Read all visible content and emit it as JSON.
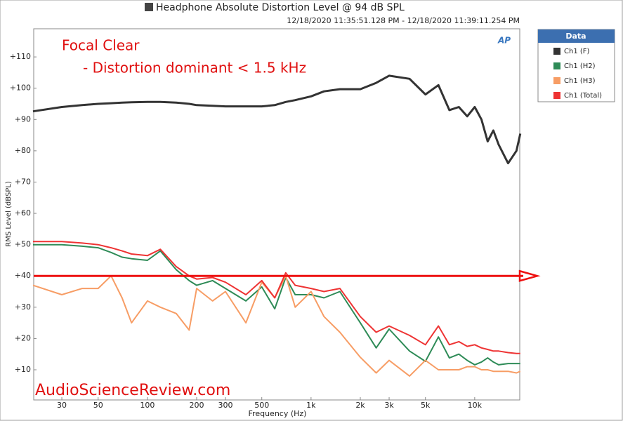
{
  "chart_data": {
    "type": "line",
    "title": "Headphone Absolute Distortion Level @ 94 dB SPL",
    "subtitle": "12/18/2020 11:35:51.128 PM - 12/18/2020 11:39:11.254 PM",
    "xlabel": "Frequency (Hz)",
    "ylabel": "RMS Level (dBSPL)",
    "annotations": [
      "Focal Clear",
      "- Distortion dominant < 1.5 kHz",
      "AudioScienceReview.com"
    ],
    "legend_title": "Data",
    "legend": "right",
    "xscale": "log",
    "grid": false,
    "hline": 40,
    "hline_color": "#ee1111",
    "xlim": [
      20,
      20000
    ],
    "ylim": [
      0,
      119
    ],
    "xticks": [
      30,
      50,
      100,
      200,
      300,
      500,
      {
        "value": 1000,
        "label": "1k"
      },
      {
        "value": 2000,
        "label": "2k"
      },
      {
        "value": 3000,
        "label": "3k"
      },
      {
        "value": 5000,
        "label": "5k"
      },
      {
        "value": 10000,
        "label": "10k"
      }
    ],
    "yticks": [
      {
        "value": 10,
        "label": "+10"
      },
      {
        "value": 20,
        "label": "+20"
      },
      {
        "value": 30,
        "label": "+30"
      },
      {
        "value": 40,
        "label": "+40"
      },
      {
        "value": 50,
        "label": "+50"
      },
      {
        "value": 60,
        "label": "+60"
      },
      {
        "value": 70,
        "label": "+70"
      },
      {
        "value": 80,
        "label": "+80"
      },
      {
        "value": 90,
        "label": "+90"
      },
      {
        "value": 100,
        "label": "+100"
      },
      {
        "value": 110,
        "label": "+110"
      }
    ],
    "x": [
      20,
      30,
      40,
      50,
      60,
      70,
      80,
      100,
      120,
      150,
      180,
      200,
      250,
      300,
      400,
      500,
      600,
      700,
      800,
      1000,
      1200,
      1500,
      2000,
      2500,
      3000,
      4000,
      5000,
      6000,
      7000,
      8000,
      9000,
      10000,
      11000,
      12000,
      13000,
      14000,
      16000,
      18000,
      19000
    ],
    "series": [
      {
        "name": "Ch1 (F)",
        "color": "#333333",
        "width": 3,
        "values": [
          92.6,
          94,
          94.6,
          95,
          95.2,
          95.4,
          95.5,
          95.6,
          95.6,
          95.4,
          95,
          94.6,
          94.4,
          94.2,
          94.2,
          94.2,
          94.6,
          95.6,
          96.2,
          97.4,
          99,
          99.7,
          99.7,
          101.7,
          104,
          103,
          98,
          101,
          93,
          94,
          91,
          94,
          90,
          83,
          86.5,
          82,
          76,
          80,
          85.5
        ]
      },
      {
        "name": "Ch1 (H2)",
        "color": "#2e8b57",
        "width": 2,
        "values": [
          50,
          50,
          49.5,
          49,
          47.5,
          46,
          45.5,
          45,
          48,
          42,
          38.5,
          37,
          38.5,
          36,
          32,
          36.5,
          29.5,
          39.5,
          34,
          34,
          33,
          35,
          25,
          17,
          23,
          16,
          12.7,
          20.5,
          13.8,
          15,
          13,
          11.6,
          12.5,
          13.8,
          12.5,
          11.6,
          12,
          12,
          12
        ]
      },
      {
        "name": "Ch1 (H3)",
        "color": "#f79d65",
        "width": 2,
        "values": [
          37,
          34,
          36,
          36,
          40,
          33,
          25,
          32,
          30,
          28,
          22.7,
          36,
          32,
          35,
          25,
          38,
          33,
          40,
          30,
          35,
          27,
          22,
          14,
          9,
          13,
          8,
          13,
          10,
          10,
          10,
          11,
          11,
          10,
          10,
          9.5,
          9.5,
          9.5,
          9,
          9.5
        ]
      },
      {
        "name": "Ch1 (Total)",
        "color": "#ee3333",
        "width": 2,
        "values": [
          51,
          51,
          50.5,
          50,
          49,
          48,
          47,
          46.5,
          48.5,
          43,
          40,
          39,
          39.5,
          38,
          34,
          38.5,
          33,
          41,
          37,
          36,
          35,
          36,
          27,
          22,
          24,
          21,
          18,
          24,
          18,
          19,
          17.5,
          18,
          17,
          16.5,
          16,
          16,
          15.5,
          15.2,
          15.2
        ]
      }
    ]
  }
}
